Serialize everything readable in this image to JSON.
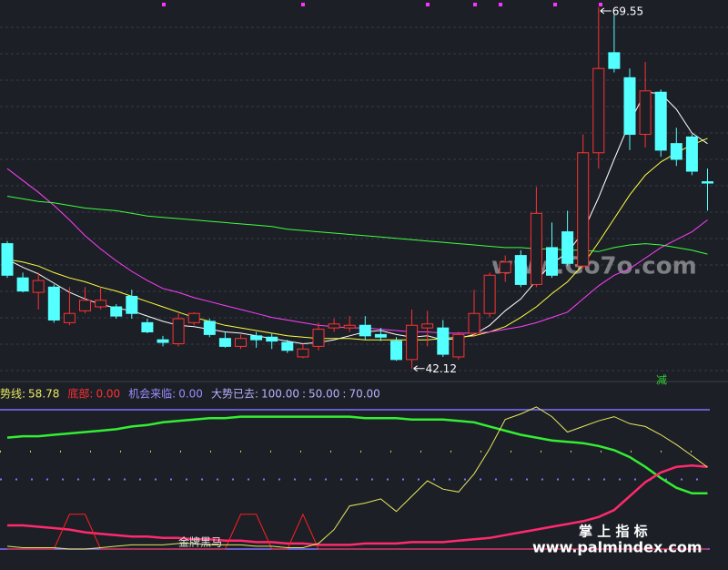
{
  "chart_data": [
    {
      "type": "candlestick",
      "ylim": [
        41.2,
        70.1
      ],
      "up_color": "#ff3232",
      "down_color": "#54ffff",
      "open": [
        51.6,
        49.0,
        47.9,
        48.3,
        45.6,
        46.5,
        46.8,
        46.8,
        47.6,
        45.6,
        44.3,
        44.0,
        45.6,
        45.7,
        44.4,
        43.8,
        44.6,
        44.5,
        44.1,
        43.0,
        43.8,
        45.2,
        45.2,
        45.4,
        44.7,
        44.2,
        42.8,
        45.2,
        45.2,
        43.0,
        44.8,
        46.3,
        49.4,
        50.7,
        48.5,
        51.3,
        52.5,
        49.9,
        58.5,
        66.1,
        64.2,
        59.9,
        63.1,
        59.2,
        59.7,
        56.3
      ],
      "high": [
        51.8,
        49.4,
        49.4,
        48.5,
        48.3,
        48.3,
        48.3,
        47.0,
        48.1,
        45.9,
        44.6,
        46.3,
        46.4,
        45.9,
        44.9,
        44.7,
        44.9,
        44.8,
        44.3,
        44.0,
        45.6,
        45.9,
        46.1,
        46.1,
        45.2,
        44.5,
        46.6,
        46.5,
        45.8,
        44.9,
        48.1,
        49.4,
        50.7,
        51.1,
        55.9,
        53.2,
        54.1,
        59.9,
        69.55,
        69.1,
        64.9,
        65.4,
        63.3,
        60.4,
        59.9,
        57.3
      ],
      "low": [
        49.0,
        47.9,
        46.6,
        45.6,
        45.4,
        46.3,
        46.6,
        45.9,
        45.9,
        44.8,
        43.8,
        43.8,
        45.4,
        44.5,
        43.7,
        43.6,
        43.7,
        43.6,
        43.3,
        42.9,
        43.5,
        44.9,
        44.9,
        44.3,
        44.2,
        42.7,
        42.12,
        43.8,
        43.0,
        42.8,
        44.5,
        46.0,
        48.7,
        48.3,
        48.3,
        49.0,
        49.9,
        49.7,
        57.3,
        64.6,
        58.7,
        58.9,
        58.2,
        57.5,
        56.8,
        54.1
      ],
      "close": [
        49.2,
        48.0,
        48.8,
        45.8,
        46.3,
        47.3,
        47.3,
        46.1,
        46.3,
        44.9,
        44.1,
        45.9,
        46.3,
        44.7,
        43.8,
        44.4,
        44.3,
        44.2,
        43.5,
        43.6,
        45.1,
        45.5,
        45.4,
        44.6,
        44.5,
        42.8,
        45.4,
        45.5,
        43.2,
        44.7,
        46.3,
        49.2,
        50.2,
        48.5,
        53.9,
        49.2,
        50.1,
        58.5,
        64.9,
        64.9,
        59.9,
        63.2,
        58.7,
        58.0,
        57.1,
        56.2
      ],
      "series": [
        {
          "color": "#ffffff",
          "values": [
            50.4,
            49.8,
            49.3,
            48.6,
            47.9,
            47.4,
            47.0,
            46.7,
            46.5,
            46.1,
            45.7,
            45.4,
            45.3,
            45.1,
            44.9,
            44.8,
            44.6,
            44.4,
            44.2,
            44.0,
            44.1,
            44.3,
            44.6,
            44.9,
            45.0,
            44.7,
            44.5,
            44.6,
            44.3,
            44.4,
            44.7,
            45.4,
            46.5,
            47.4,
            48.8,
            50.1,
            50.9,
            52.5,
            55.1,
            58.0,
            60.8,
            63.1,
            63.0,
            61.8,
            60.0,
            59.2
          ]
        },
        {
          "color": "#ffff40",
          "values": [
            50.4,
            50.2,
            49.9,
            49.4,
            49.0,
            48.7,
            48.3,
            48.0,
            47.6,
            47.2,
            46.8,
            46.4,
            46.0,
            45.7,
            45.4,
            45.2,
            45.0,
            44.8,
            44.6,
            44.5,
            44.4,
            44.4,
            44.4,
            44.3,
            44.3,
            44.3,
            44.3,
            44.3,
            44.4,
            44.5,
            44.6,
            44.9,
            45.3,
            46.0,
            46.8,
            47.8,
            48.7,
            50.0,
            51.7,
            53.5,
            55.3,
            56.8,
            57.8,
            58.5,
            59.1,
            59.6
          ]
        },
        {
          "color": "#ff40ff",
          "values": [
            57.3,
            56.4,
            55.5,
            54.5,
            53.4,
            52.2,
            51.2,
            50.3,
            49.5,
            48.8,
            48.2,
            47.9,
            47.5,
            47.2,
            46.9,
            46.6,
            46.3,
            46.0,
            45.8,
            45.6,
            45.4,
            45.3,
            45.2,
            45.2,
            45.1,
            45.0,
            44.9,
            44.9,
            44.8,
            44.8,
            44.8,
            44.9,
            45.1,
            45.3,
            45.6,
            46.0,
            46.4,
            47.4,
            48.4,
            49.2,
            49.7,
            50.5,
            51.3,
            51.9,
            52.5,
            53.4
          ]
        },
        {
          "color": "#40ff40",
          "values": [
            55.2,
            55.0,
            54.8,
            54.7,
            54.5,
            54.3,
            54.2,
            54.1,
            53.9,
            53.7,
            53.6,
            53.5,
            53.4,
            53.3,
            53.2,
            53.1,
            53.0,
            52.9,
            52.7,
            52.6,
            52.5,
            52.4,
            52.3,
            52.2,
            52.1,
            52.0,
            51.9,
            51.8,
            51.7,
            51.6,
            51.5,
            51.4,
            51.3,
            51.3,
            51.2,
            51.2,
            51.1,
            51.1,
            51.0,
            51.3,
            51.5,
            51.6,
            51.5,
            51.3,
            51.1,
            50.8
          ]
        }
      ],
      "max_label": 69.55,
      "min_label": 42.12,
      "signal": "减",
      "watermark": "www.Go7o.com"
    },
    {
      "type": "line",
      "ylim": [
        0,
        100
      ],
      "legend": [
        {
          "name": "趋势线:",
          "value": 58.78,
          "color": "#e8e860"
        },
        {
          "name": "底部:",
          "value": 0,
          "value_label": "0.00",
          "color": "#ff3030"
        },
        {
          "name": "机会来临:",
          "value": 0,
          "value_label": "0.00",
          "color": "#9a8cff"
        },
        {
          "name": "大势已去:",
          "values": [
            100,
            50,
            70
          ],
          "value_labels": [
            "100.00",
            "50.00",
            "70.00"
          ],
          "separator": ":",
          "color": "#b8b0ff"
        }
      ],
      "level_colors": [
        "#8070ff",
        "#8070ff",
        "#d8d860"
      ],
      "series": [
        {
          "color": "#33ee33",
          "width": 2.5,
          "values": [
            80,
            81,
            81,
            82,
            83,
            84,
            85,
            86,
            88,
            89,
            91,
            92,
            93,
            94,
            94,
            95,
            95,
            95,
            95,
            95,
            95,
            95,
            95,
            94,
            94,
            94,
            93,
            93,
            93,
            92,
            91,
            88,
            85,
            82,
            80,
            78,
            77,
            76,
            74,
            71,
            66,
            59,
            51,
            44,
            40,
            40
          ]
        },
        {
          "color": "#ff2a6d",
          "width": 2.5,
          "values": [
            17,
            17,
            16,
            15,
            14,
            12,
            11,
            10,
            9,
            9,
            8,
            8,
            7,
            7,
            6,
            6,
            5,
            5,
            4,
            4,
            3,
            3,
            3,
            4,
            4,
            4,
            5,
            5,
            5,
            6,
            7,
            8,
            10,
            12,
            14,
            16,
            18,
            20,
            23,
            28,
            38,
            48,
            55,
            59,
            60,
            59
          ]
        },
        {
          "name": "底部",
          "color": "#ff2020",
          "width": 1,
          "values": [
            0,
            0,
            0,
            0,
            25,
            25,
            0,
            0,
            0,
            0,
            0,
            0,
            0,
            0,
            0,
            25,
            25,
            0,
            0,
            25,
            0,
            0,
            0,
            0,
            0,
            0,
            0,
            0,
            0,
            0,
            0,
            0,
            0,
            0,
            0,
            0,
            0,
            0,
            0,
            0,
            0,
            0,
            0,
            0,
            0,
            0
          ]
        },
        {
          "name": "趋势线",
          "color": "#e8e860",
          "width": 1,
          "values": [
            2,
            1,
            1,
            1,
            0,
            0,
            1,
            2,
            3,
            3,
            3,
            4,
            4,
            3,
            3,
            3,
            2,
            2,
            1,
            1,
            4,
            14,
            31,
            33,
            36,
            27,
            38,
            49,
            43,
            41,
            54,
            72,
            93,
            97,
            102,
            95,
            84,
            88,
            92,
            95,
            90,
            88,
            82,
            75,
            67,
            58.78
          ]
        }
      ],
      "annotation": "金牌黑马",
      "watermark": [
        "掌 上 指 标",
        "www.palmindex.com"
      ]
    }
  ]
}
